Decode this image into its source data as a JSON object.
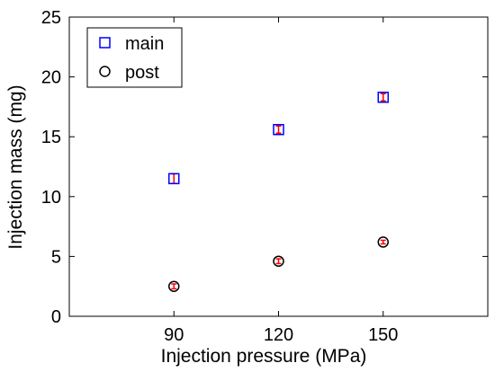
{
  "chart_data": {
    "type": "scatter",
    "xlabel": "Injection pressure (MPa)",
    "ylabel": "Injection mass (mg)",
    "x_categories": [
      "90",
      "120",
      "150"
    ],
    "x_values": [
      90,
      120,
      150
    ],
    "xlim": [
      60,
      180
    ],
    "ylim": [
      0,
      25
    ],
    "yticks": [
      0,
      5,
      10,
      15,
      20,
      25
    ],
    "grid": false,
    "legend_position": "top-left",
    "series": [
      {
        "name": "main",
        "marker": "square-open",
        "color": "#0000ff",
        "values": [
          11.5,
          15.6,
          18.3
        ],
        "error": [
          0.4,
          0.3,
          0.3
        ],
        "error_color": "#ff0000"
      },
      {
        "name": "post",
        "marker": "circle-open",
        "color": "#000000",
        "values": [
          2.5,
          4.6,
          6.2
        ],
        "error": [
          0.2,
          0.2,
          0.15
        ],
        "error_color": "#ff0000"
      }
    ]
  }
}
